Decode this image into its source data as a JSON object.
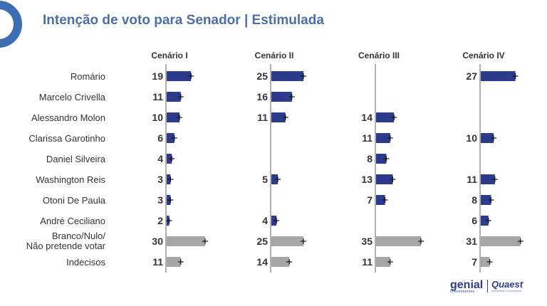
{
  "title": "Intenção de voto para Senador | Estimulada",
  "colors": {
    "accent": "#4a6fa5",
    "candidate_bar": "#2d3b8c",
    "other_bar": "#a6a6a6",
    "axis": "#b0b0b0",
    "text": "#333333"
  },
  "brand": {
    "genial": "genial",
    "genial_sub": "investimentos",
    "quaest": "Quaest",
    "quaest_sub": "pesquisas e consultoria"
  },
  "chart_data": {
    "type": "bar",
    "orientation": "horizontal",
    "title": "Intenção de voto para Senador | Estimulada",
    "categories": [
      "Romário",
      "Marcelo Crivella",
      "Alessandro Molon",
      "Clarissa Garotinho",
      "Daniel Silveira",
      "Washington Reis",
      "Otoni De Paula",
      "André Ceciliano",
      "Branco/Nulo/\nNão pretende votar",
      "Indecisos"
    ],
    "category_kind": [
      "candidate",
      "candidate",
      "candidate",
      "candidate",
      "candidate",
      "candidate",
      "candidate",
      "candidate",
      "other",
      "other"
    ],
    "series": [
      {
        "name": "Cenário I",
        "values": [
          19,
          11,
          10,
          6,
          4,
          3,
          3,
          2,
          30,
          11
        ]
      },
      {
        "name": "Cenário II",
        "values": [
          25,
          16,
          11,
          null,
          null,
          5,
          null,
          4,
          25,
          14
        ]
      },
      {
        "name": "Cenário III",
        "values": [
          null,
          null,
          14,
          11,
          8,
          13,
          7,
          null,
          35,
          11
        ]
      },
      {
        "name": "Cenário IV",
        "values": [
          27,
          null,
          null,
          10,
          null,
          11,
          8,
          6,
          31,
          7
        ]
      }
    ],
    "error_bars": true,
    "value_labels": true
  }
}
